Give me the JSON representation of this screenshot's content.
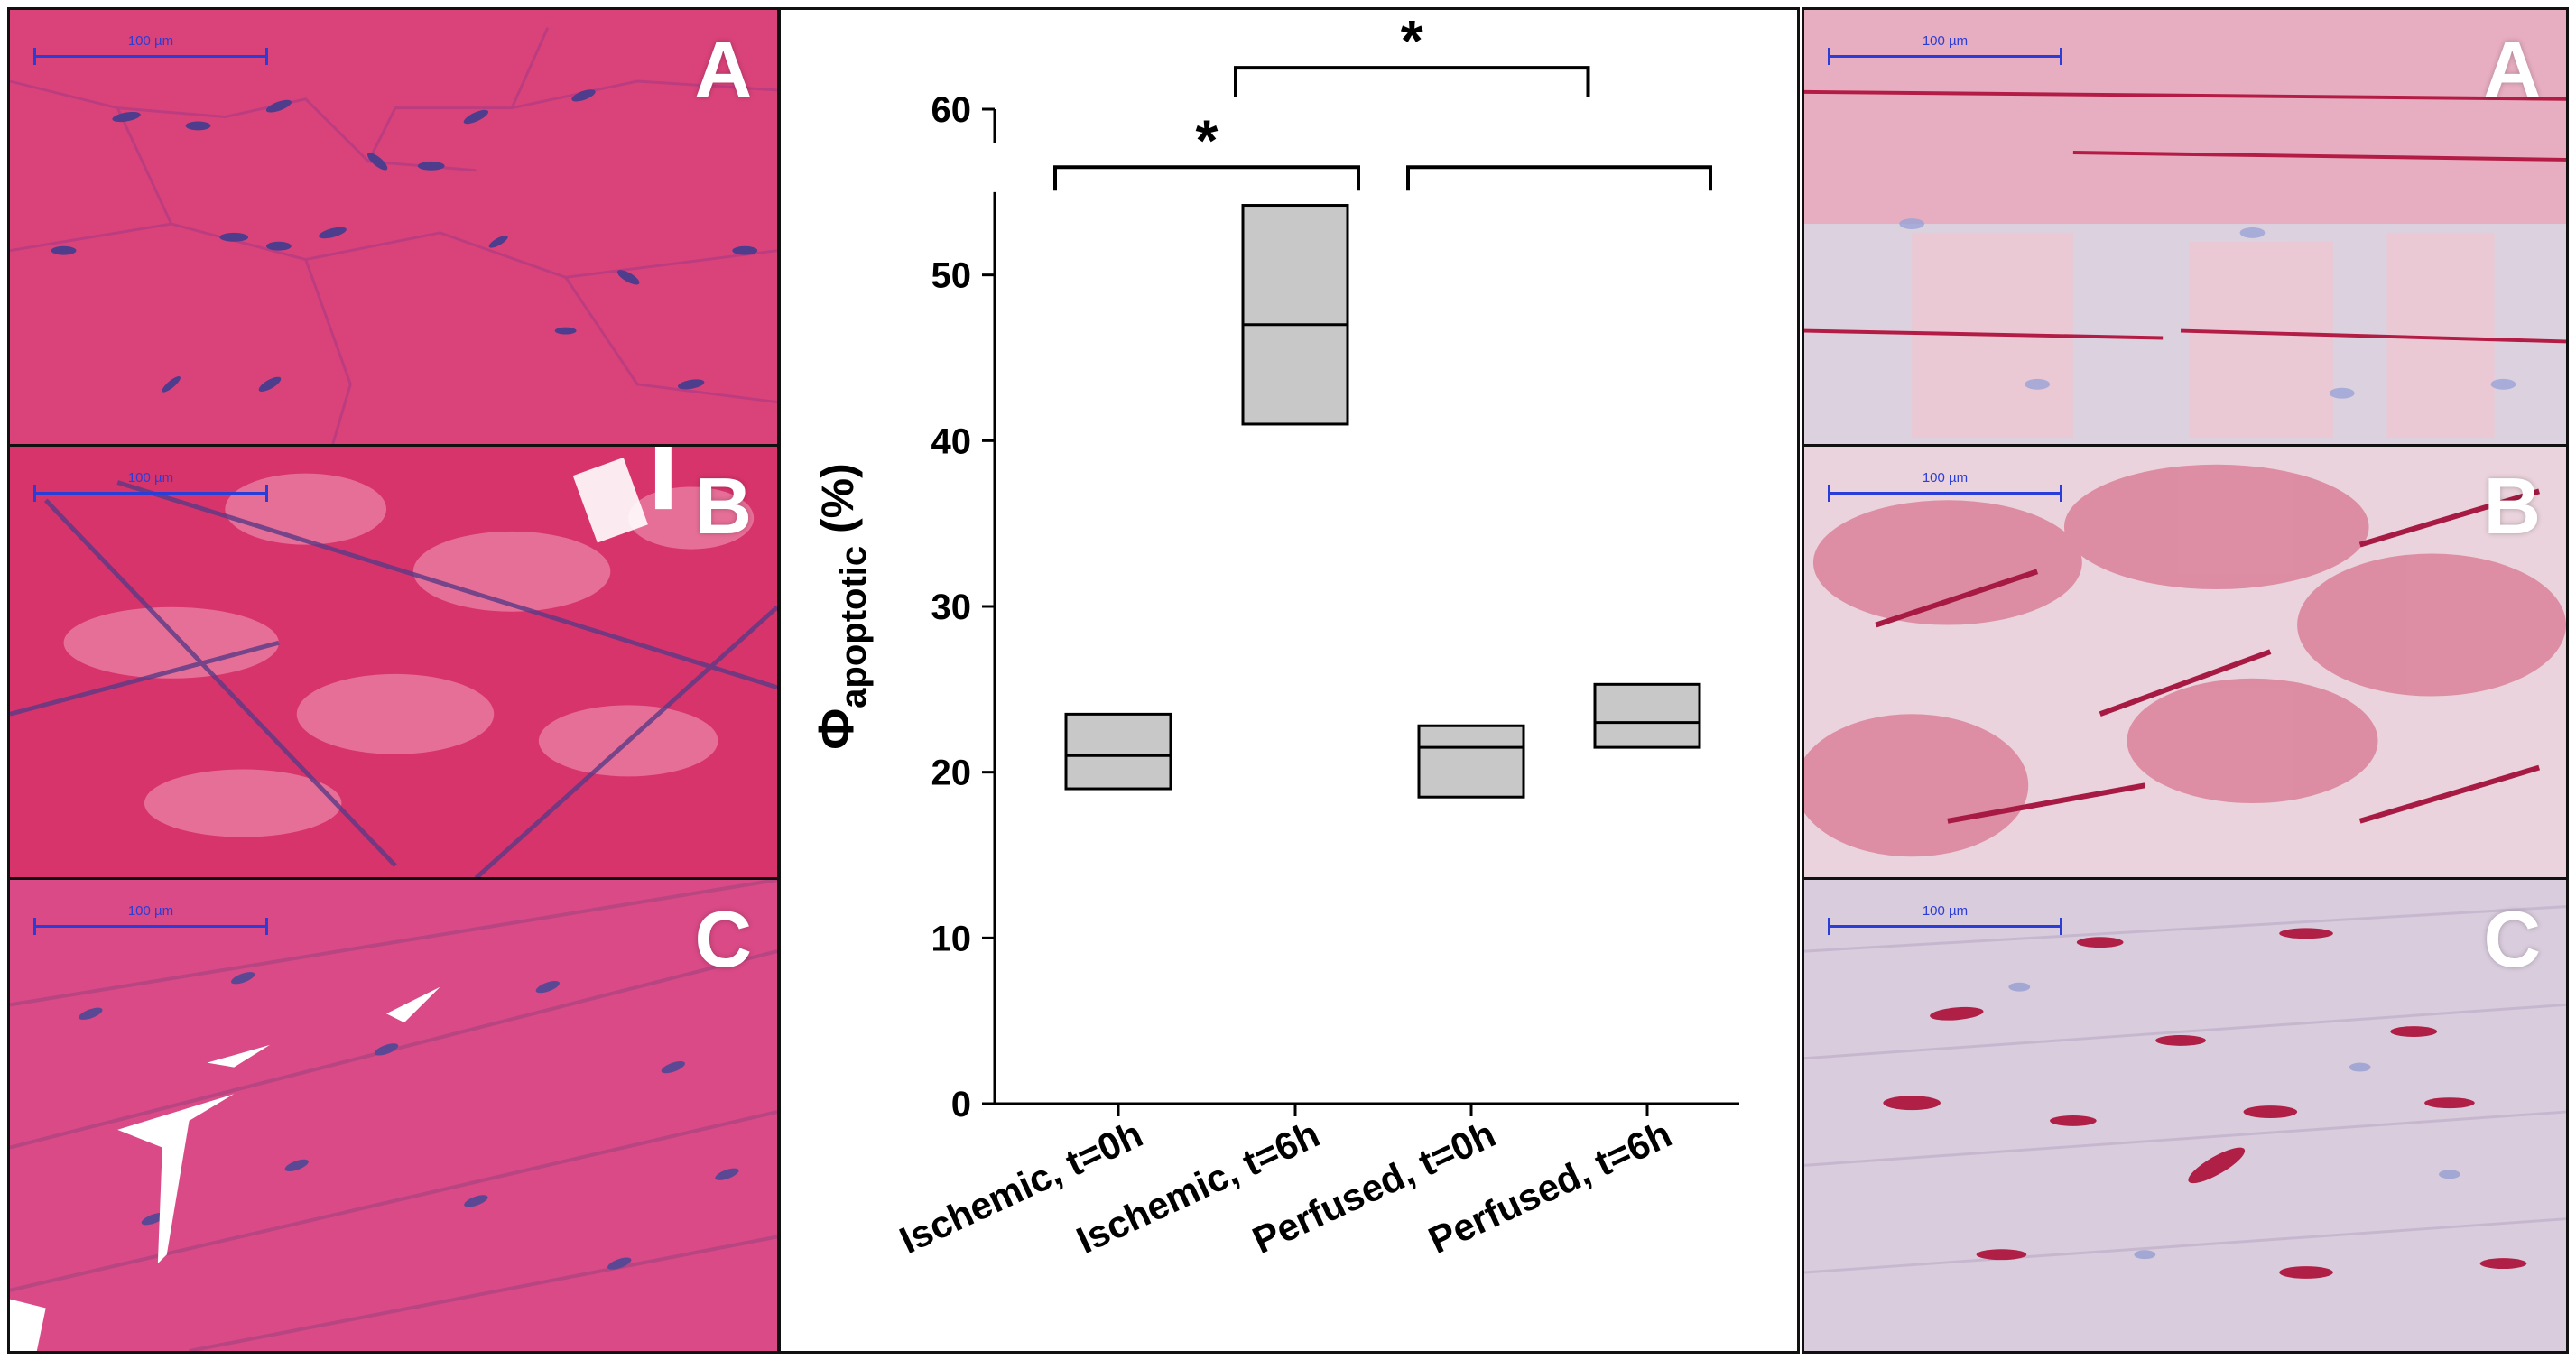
{
  "micrographs": {
    "left": [
      {
        "letter": "A",
        "scale_label": "100 µm"
      },
      {
        "letter": "B",
        "scale_label": "100 µm"
      },
      {
        "letter": "C",
        "scale_label": "100 µm"
      }
    ],
    "right": [
      {
        "letter": "A",
        "scale_label": "100 µm"
      },
      {
        "letter": "B",
        "scale_label": "100 µm"
      },
      {
        "letter": "C",
        "scale_label": "100 µm"
      }
    ],
    "colors": {
      "he_background": "#d2426e",
      "he_nuclei": "#5b3f8f",
      "ihc_background": "#e4c7d2",
      "ihc_stain": "#b01f45",
      "scale_bar": "#2a3dd6"
    }
  },
  "chart_data": {
    "type": "box",
    "title": "",
    "xlabel": "",
    "ylabel_symbol": "Φ",
    "ylabel_subscript": "apoptotic",
    "ylabel_unit": "(%)",
    "ylim": [
      0,
      60
    ],
    "yticks": [
      0,
      10,
      20,
      30,
      40,
      50,
      60
    ],
    "y_axis_break": [
      55,
      60
    ],
    "categories": [
      "Ischemic, t=0h",
      "Ischemic, t=6h",
      "Perfused, t=0h",
      "Perfused, t=6h"
    ],
    "boxes": [
      {
        "q1": 19.0,
        "median": 21.0,
        "q3": 23.5
      },
      {
        "q1": 41.0,
        "median": 47.0,
        "q3": 54.2
      },
      {
        "q1": 18.5,
        "median": 21.5,
        "q3": 22.8
      },
      {
        "q1": 21.5,
        "median": 23.0,
        "q3": 25.3
      }
    ],
    "box_fill": "#c8c8c8",
    "significance": [
      {
        "from": 0,
        "to": 1,
        "label": "*",
        "level": 56.5
      },
      {
        "from": 2,
        "to": 3,
        "label": "",
        "level": 56.5
      },
      {
        "from": "bracket0",
        "to": "bracket1",
        "label": "*",
        "level": 62.5
      }
    ]
  }
}
